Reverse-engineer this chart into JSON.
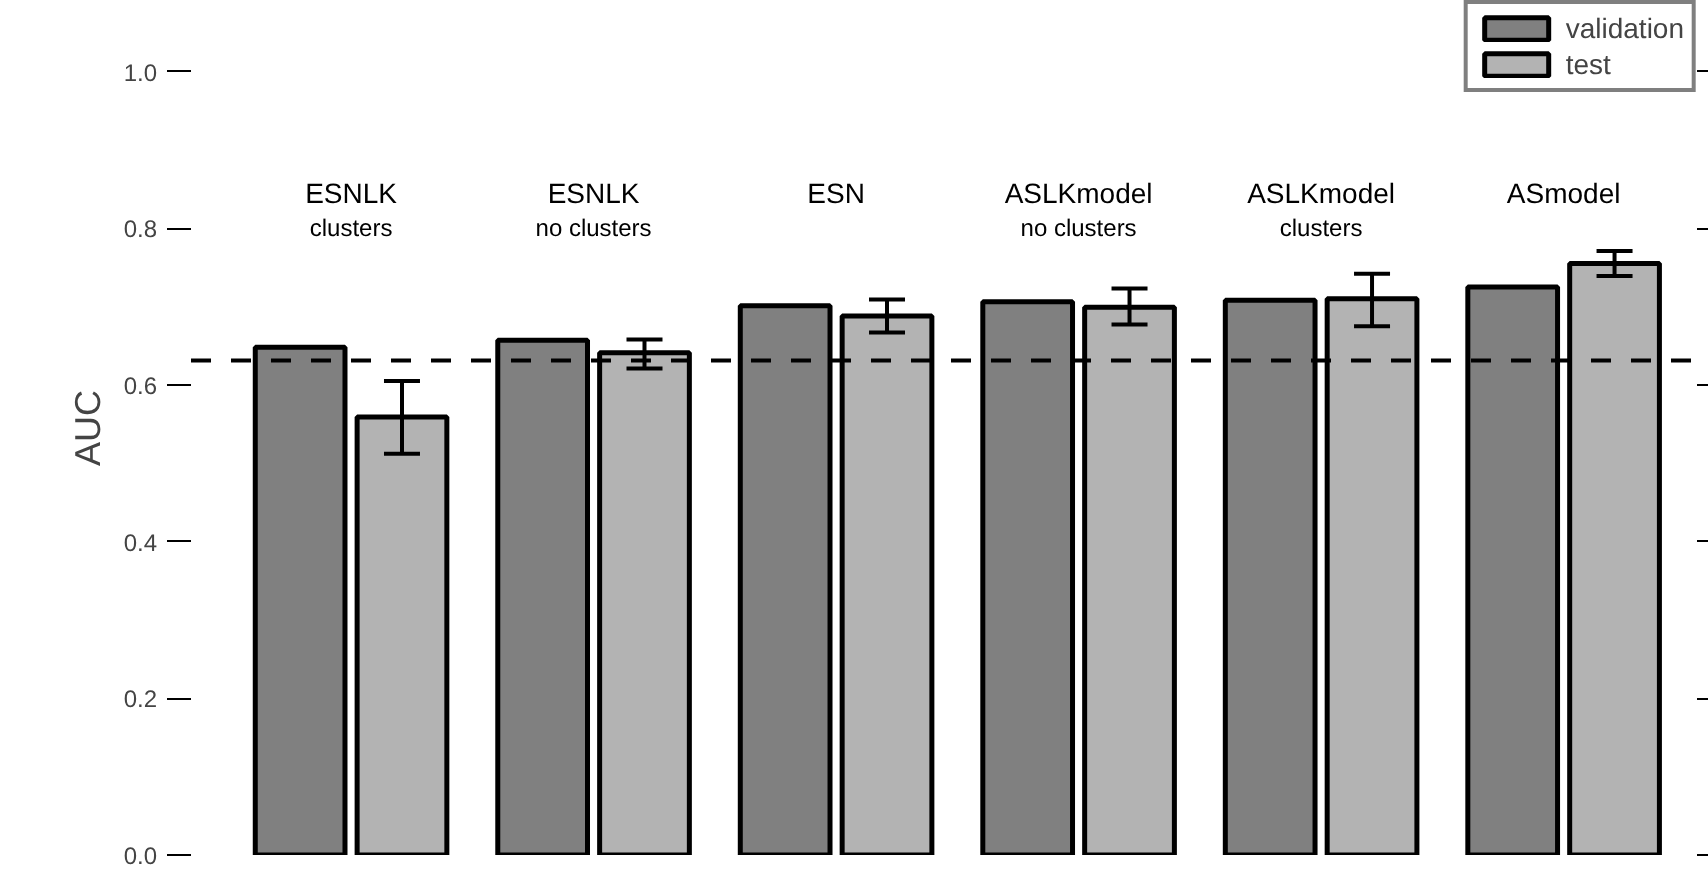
{
  "chart_data": {
    "type": "bar",
    "ylabel": "AUC",
    "categories": [
      "ESNLK\nclusters",
      "ESNLK\nno clusters",
      "ESN",
      "ASLKmodel\nno clusters",
      "ASLKmodel\nclusters",
      "ASmodel"
    ],
    "series": [
      {
        "name": "validation",
        "color": "#808080",
        "values": [
          0.648,
          0.657,
          0.701,
          0.706,
          0.708,
          0.725
        ]
      },
      {
        "name": "test",
        "color": "#b3b3b3",
        "values": [
          0.559,
          0.641,
          0.688,
          0.699,
          0.71,
          0.755
        ],
        "errors": [
          [
            0.512,
            0.605
          ],
          [
            0.621,
            0.658
          ],
          [
            0.667,
            0.709
          ],
          [
            0.677,
            0.723
          ],
          [
            0.675,
            0.742
          ],
          [
            0.739,
            0.771
          ]
        ]
      }
    ],
    "ylim": [
      0,
      1.09
    ],
    "yticks": [
      {
        "value": 0,
        "label": "0.0"
      },
      0.2,
      0.4,
      0.6,
      0.8,
      {
        "value": 1,
        "label": "1.0"
      }
    ],
    "ref_lines": [
      {
        "axis": "y",
        "value": 0.631,
        "line_style": "dashed"
      }
    ],
    "grid": false,
    "legend": "top right"
  }
}
